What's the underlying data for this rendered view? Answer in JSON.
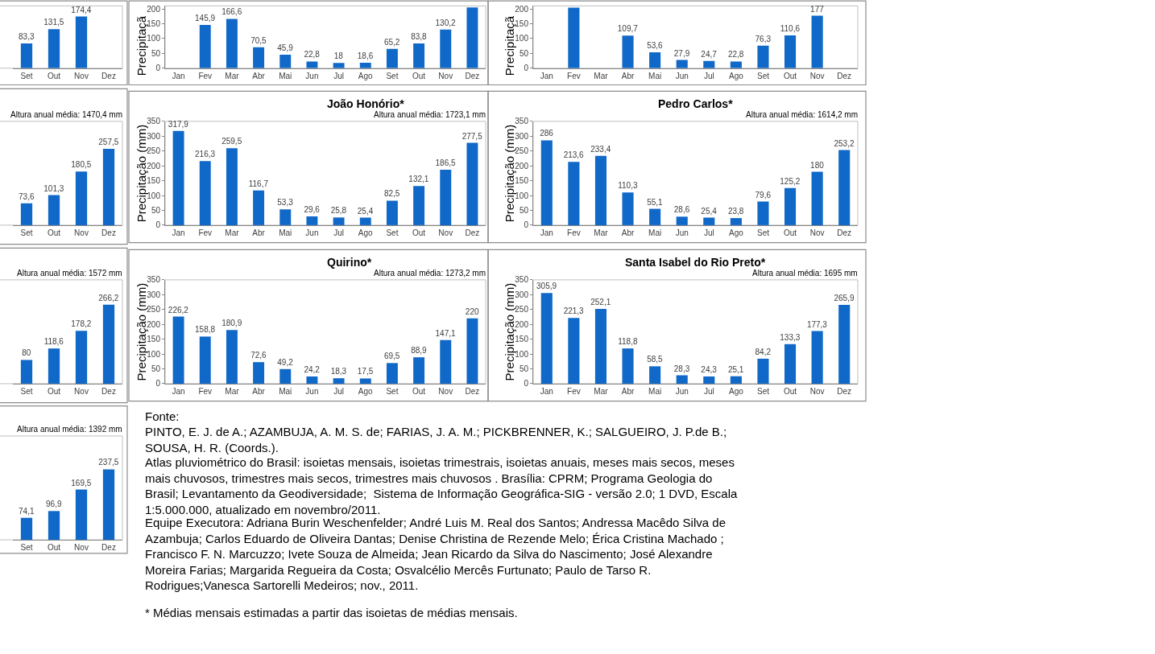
{
  "chart_data": [
    {
      "type": "bar",
      "categories": [
        "Set",
        "Out",
        "Nov",
        "Dez"
      ],
      "values": [
        83.3,
        131.5,
        174.4,
        null
      ],
      "value_labels": [
        "83,3",
        "131,5",
        "174,4",
        null
      ],
      "color": "#1068c8",
      "ylim": [
        0,
        210
      ],
      "tick_labels": "x"
    },
    {
      "type": "bar",
      "ylabel": "Precipitaçã",
      "categories": [
        "Jan",
        "Fev",
        "Mar",
        "Abr",
        "Mai",
        "Jun",
        "Jul",
        "Ago",
        "Set",
        "Out",
        "Nov",
        "Dez"
      ],
      "values": [
        null,
        145.9,
        166.6,
        70.5,
        45.9,
        22.8,
        18,
        18.6,
        65.2,
        83.8,
        130.2,
        205
      ],
      "value_labels": [
        null,
        "145,9",
        "166,6",
        "70,5",
        "45,9",
        "22,8",
        "18",
        "18,6",
        "65,2",
        "83,8",
        "130,2",
        null
      ],
      "color": "#1068c8",
      "ylim": [
        0,
        210
      ],
      "yticks": [
        0,
        50,
        100,
        150,
        200
      ]
    },
    {
      "type": "bar",
      "ylabel": "Precipitaçã",
      "categories": [
        "Jan",
        "Fev",
        "Mar",
        "Abr",
        "Mai",
        "Jun",
        "Jul",
        "Ago",
        "Set",
        "Out",
        "Nov",
        "Dez"
      ],
      "values": [
        null,
        204,
        null,
        109.7,
        53.6,
        27.9,
        24.7,
        22.8,
        76.3,
        110.6,
        177,
        null
      ],
      "value_labels": [
        null,
        null,
        null,
        "109,7",
        "53,6",
        "27,9",
        "24,7",
        "22,8",
        "76,3",
        "110,6",
        "177",
        null
      ],
      "color": "#1068c8",
      "ylim": [
        0,
        210
      ],
      "yticks": [
        0,
        50,
        100,
        150,
        200
      ]
    },
    {
      "type": "bar",
      "annotations": [
        "Altura anual média: 1470,4 mm"
      ],
      "categories": [
        "Set",
        "Out",
        "Nov",
        "Dez"
      ],
      "values": [
        73.6,
        101.3,
        180.5,
        257.5
      ],
      "value_labels": [
        "73,6",
        "101,3",
        "180,5",
        "257,5"
      ],
      "color": "#1068c8",
      "ylim": [
        0,
        350
      ],
      "tick_labels": "x"
    },
    {
      "type": "bar",
      "title": "João Honório*",
      "annotations": [
        "Altura anual média: 1723,1 mm"
      ],
      "ylabel": "Precipitação (mm)",
      "categories": [
        "Jan",
        "Fev",
        "Mar",
        "Abr",
        "Mai",
        "Jun",
        "Jul",
        "Ago",
        "Set",
        "Out",
        "Nov",
        "Dez"
      ],
      "values": [
        317.9,
        216.3,
        259.5,
        116.7,
        53.3,
        29.6,
        25.8,
        25.4,
        82.5,
        132.1,
        186.5,
        277.5
      ],
      "value_labels": [
        "317,9",
        "216,3",
        "259,5",
        "116,7",
        "53,3",
        "29,6",
        "25,8",
        "25,4",
        "82,5",
        "132,1",
        "186,5",
        "277,5"
      ],
      "color": "#1068c8",
      "ylim": [
        0,
        350
      ],
      "yticks": [
        0,
        50,
        100,
        150,
        200,
        250,
        300,
        350
      ]
    },
    {
      "type": "bar",
      "title": "Pedro Carlos*",
      "annotations": [
        "Altura anual média: 1614,2 mm"
      ],
      "ylabel": "Precipitação (mm)",
      "categories": [
        "Jan",
        "Fev",
        "Mar",
        "Abr",
        "Mai",
        "Jun",
        "Jul",
        "Ago",
        "Set",
        "Out",
        "Nov",
        "Dez"
      ],
      "values": [
        286,
        213.6,
        233.4,
        110.3,
        55.1,
        28.6,
        25.4,
        23.8,
        79.6,
        125.2,
        180,
        253.2
      ],
      "value_labels": [
        "286",
        "213,6",
        "233,4",
        "110,3",
        "55,1",
        "28,6",
        "25,4",
        "23,8",
        "79,6",
        "125,2",
        "180",
        "253,2"
      ],
      "color": "#1068c8",
      "ylim": [
        0,
        350
      ],
      "yticks": [
        0,
        50,
        100,
        150,
        200,
        250,
        300,
        350
      ]
    },
    {
      "type": "bar",
      "annotations": [
        "Altura anual média: 1572 mm"
      ],
      "categories": [
        "Set",
        "Out",
        "Nov",
        "Dez"
      ],
      "values": [
        80,
        118.6,
        178.2,
        266.2
      ],
      "value_labels": [
        "80",
        "118,6",
        "178,2",
        "266,2"
      ],
      "color": "#1068c8",
      "ylim": [
        0,
        350
      ],
      "tick_labels": "x"
    },
    {
      "type": "bar",
      "title": "Quirino*",
      "annotations": [
        "Altura anual média: 1273,2 mm"
      ],
      "ylabel": "Precipitação (mm)",
      "categories": [
        "Jan",
        "Fev",
        "Mar",
        "Abr",
        "Mai",
        "Jun",
        "Jul",
        "Ago",
        "Set",
        "Out",
        "Nov",
        "Dez"
      ],
      "values": [
        226.2,
        158.8,
        180.9,
        72.6,
        49.2,
        24.2,
        18.3,
        17.5,
        69.5,
        88.9,
        147.1,
        220
      ],
      "value_labels": [
        "226,2",
        "158,8",
        "180,9",
        "72,6",
        "49,2",
        "24,2",
        "18,3",
        "17,5",
        "69,5",
        "88,9",
        "147,1",
        "220"
      ],
      "color": "#1068c8",
      "ylim": [
        0,
        350
      ],
      "yticks": [
        0,
        50,
        100,
        150,
        200,
        250,
        300,
        350
      ]
    },
    {
      "type": "bar",
      "title": "Santa Isabel do Rio Preto*",
      "annotations": [
        "Altura anual média: 1695 mm"
      ],
      "ylabel": "Precipitação (mm)",
      "categories": [
        "Jan",
        "Fev",
        "Mar",
        "Abr",
        "Mai",
        "Jun",
        "Jul",
        "Ago",
        "Set",
        "Out",
        "Nov",
        "Dez"
      ],
      "values": [
        305.9,
        221.3,
        252.1,
        118.8,
        58.5,
        28.3,
        24.3,
        25.1,
        84.2,
        133.3,
        177.3,
        265.9
      ],
      "value_labels": [
        "305,9",
        "221,3",
        "252,1",
        "118,8",
        "58,5",
        "28,3",
        "24,3",
        "25,1",
        "84,2",
        "133,3",
        "177,3",
        "265,9"
      ],
      "color": "#1068c8",
      "ylim": [
        0,
        350
      ],
      "yticks": [
        0,
        50,
        100,
        150,
        200,
        250,
        300,
        350
      ]
    },
    {
      "type": "bar",
      "annotations": [
        "Altura anual média: 1392 mm"
      ],
      "categories": [
        "Set",
        "Out",
        "Nov",
        "Dez"
      ],
      "values": [
        74.1,
        96.9,
        169.5,
        237.5
      ],
      "value_labels": [
        "74,1",
        "96,9",
        "169,5",
        "237,5"
      ],
      "color": "#1068c8",
      "ylim": [
        0,
        350
      ],
      "tick_labels": "x"
    },
    {
      "type": "other",
      "annotations": [
        "Fonte:",
        "PINTO, E. J. de A.; AZAMBUJA, A. M. S. de; FARIAS, J. A. M.; PICKBRENNER, K.; SALGUEIRO, J. P.de B.;\nSOUSA, H. R. (Coords.).",
        "Atlas pluviométrico do Brasil: isoietas mensais, isoietas trimestrais, isoietas anuais, meses mais secos, meses\nmais chuvosos, trimestres mais secos, trimestres mais chuvosos . Brasília: CPRM; Programa Geologia do\nBrasil; Levantamento da Geodiversidade;  Sistema de Informação Geográfica-SIG - versão 2.0; 1 DVD, Escala\n1:5.000.000, atualizado em novembro/2011.",
        "Equipe Executora: Adriana Burin Weschenfelder; André Luis M. Real dos Santos; Andressa Macêdo Silva de\nAzambuja; Carlos Eduardo de Oliveira Dantas; Denise Christina de Rezende Melo; Érica Cristina Machado ;\nFrancisco F. N. Marcuzzo; Ivete Souza de Almeida; Jean Ricardo da Silva do Nascimento; José Alexandre\nMoreira Farias; Margarida Regueira da Costa; Osvalcélio Mercês Furtunato; Paulo de Tarso R.\nRodrigues;Vanesca Sartorelli Medeiros; nov., 2011.",
        "* Médias mensais estimadas a partir das isoietas de médias mensais."
      ]
    }
  ]
}
